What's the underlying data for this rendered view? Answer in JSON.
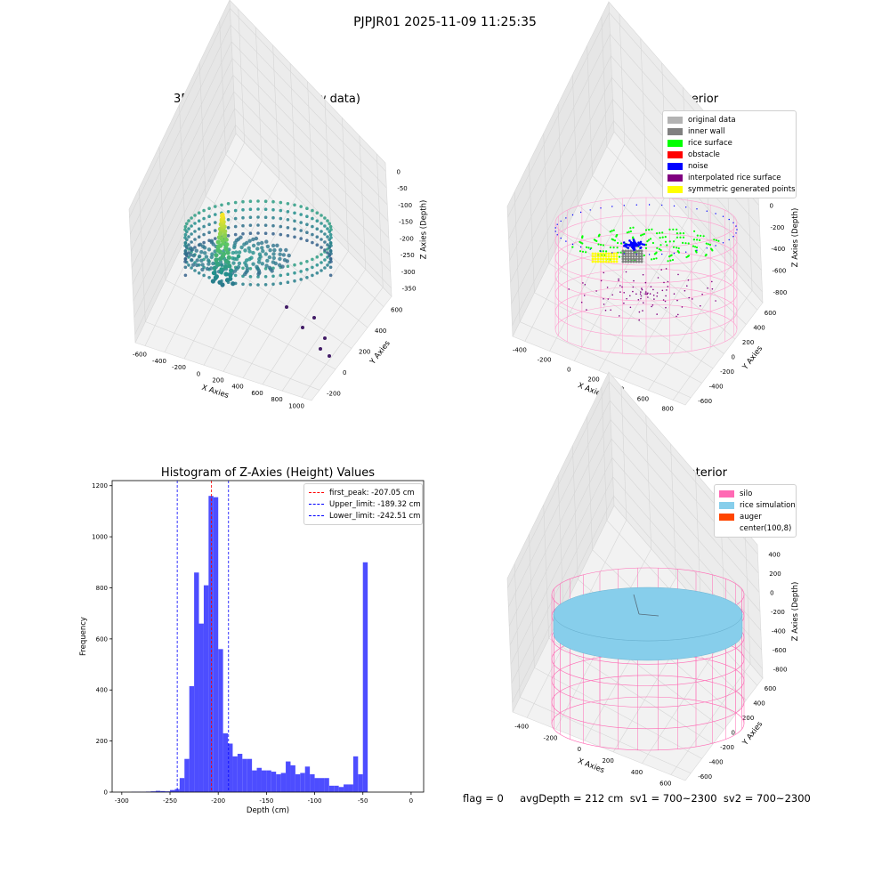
{
  "suptitle": "PJPJR01 2025-11-09 11:25:35",
  "panels": {
    "raw": {
      "title": "3D Plot of Silo Interior(row data)",
      "xlabel": "X Axies",
      "ylabel": "Y Axies",
      "zlabel": "Z Axies (Depth)",
      "x_ticks": [
        "-600",
        "-400",
        "-200",
        "0",
        "200",
        "400",
        "600",
        "800",
        "1000"
      ],
      "y_ticks": [
        "-200",
        "0",
        "200",
        "400",
        "600"
      ],
      "z_ticks": [
        "0",
        "-50",
        "-100",
        "-150",
        "-200",
        "-250",
        "-300",
        "-350"
      ]
    },
    "classify": {
      "title": "3D classify of Silo Interior",
      "xlabel": "X Axies",
      "ylabel": "Y Axies",
      "zlabel": "Z Axies (Depth)",
      "x_ticks": [
        "-400",
        "-200",
        "0",
        "200",
        "400",
        "600",
        "800"
      ],
      "y_ticks": [
        "-600",
        "-400",
        "-200",
        "0",
        "200",
        "400",
        "600"
      ],
      "z_ticks": [
        "200",
        "0",
        "-200",
        "-400",
        "-600",
        "-800"
      ],
      "legend": [
        {
          "label": "original data",
          "color": "#b3b3b3"
        },
        {
          "label": "inner wall",
          "color": "#808080"
        },
        {
          "label": "rice surface",
          "color": "#00ff00"
        },
        {
          "label": "obstacle",
          "color": "#ff0000"
        },
        {
          "label": "noise",
          "color": "#0000ff"
        },
        {
          "label": "interpolated rice surface",
          "color": "#800080"
        },
        {
          "label": "symmetric generated points",
          "color": "#ffff00"
        }
      ]
    },
    "simulation": {
      "title": "3D simulation of Silo Interior",
      "xlabel": "X Axies",
      "ylabel": "Y Axies",
      "zlabel": "Z Axies (Depth)",
      "x_ticks": [
        "-400",
        "-200",
        "0",
        "200",
        "400",
        "600"
      ],
      "y_ticks": [
        "-600",
        "-400",
        "-200",
        "0",
        "200",
        "400",
        "600"
      ],
      "z_ticks": [
        "400",
        "200",
        "0",
        "-200",
        "-400",
        "-600",
        "-800"
      ],
      "legend": [
        {
          "label": "silo",
          "color": "#ff69b4"
        },
        {
          "label": "rice simulation",
          "color": "#87ceeb"
        },
        {
          "label": "auger",
          "color": "#ff4500"
        },
        {
          "label": "center(100,8)",
          "color": ""
        }
      ]
    }
  },
  "chart_data": {
    "type": "bar",
    "title": "Histogram of Z-Axies (Height) Values",
    "xlabel": "Depth (cm)",
    "ylabel": "Frequency",
    "xlim": [
      -310,
      13
    ],
    "ylim": [
      0,
      1220
    ],
    "x_ticks": [
      -300,
      -250,
      -200,
      -150,
      -100,
      -50,
      0
    ],
    "y_ticks": [
      0,
      200,
      400,
      600,
      800,
      1000,
      1200
    ],
    "bin_width": 5,
    "bin_starts": [
      -290,
      -285,
      -280,
      -275,
      -270,
      -265,
      -260,
      -255,
      -250,
      -245,
      -240,
      -235,
      -230,
      -225,
      -220,
      -215,
      -210,
      -205,
      -200,
      -195,
      -190,
      -185,
      -180,
      -175,
      -170,
      -165,
      -160,
      -155,
      -150,
      -145,
      -140,
      -135,
      -130,
      -125,
      -120,
      -115,
      -110,
      -105,
      -100,
      -95,
      -90,
      -85,
      -80,
      -75,
      -70,
      -65,
      -60,
      -55,
      -50,
      -45,
      -40,
      -35,
      -30,
      -25,
      -20,
      -15,
      -10,
      -5
    ],
    "values": [
      1,
      1,
      1,
      2,
      3,
      5,
      4,
      3,
      8,
      12,
      55,
      130,
      415,
      860,
      660,
      810,
      1160,
      1155,
      560,
      230,
      190,
      140,
      150,
      130,
      130,
      85,
      95,
      85,
      85,
      80,
      70,
      75,
      120,
      105,
      70,
      75,
      100,
      70,
      55,
      55,
      55,
      25,
      25,
      20,
      30,
      30,
      140,
      70,
      900,
      0,
      0,
      0,
      0,
      0,
      0,
      0,
      0,
      0
    ],
    "lines": [
      {
        "label": "first_peak: -207.05 cm",
        "x": -207.05,
        "color": "#ff0000"
      },
      {
        "label": "Upper_limit: -189.32 cm",
        "x": -189.32,
        "color": "#0000ff"
      },
      {
        "label": "Lower_limit: -242.51 cm",
        "x": -242.51,
        "color": "#0000ff"
      }
    ],
    "bar_color": "#4d4dff"
  },
  "status": "flag = 0     avgDepth = 212 cm  sv1 = 700~2300  sv2 = 700~2300"
}
